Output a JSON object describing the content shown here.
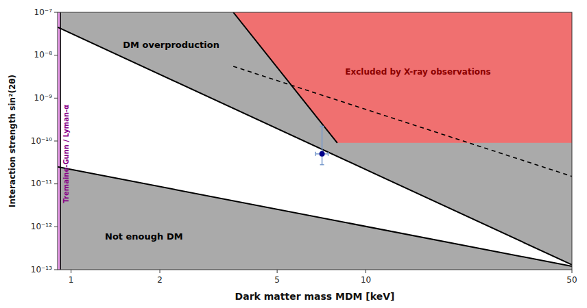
{
  "chart_data": {
    "type": "region",
    "xlabel": "Dark matter mass MDM [keV]",
    "ylabel": "Interaction strength sin²(2θ)",
    "log": true,
    "grid": false,
    "xlim": [
      0.9,
      50
    ],
    "ylim": [
      1e-13,
      1e-07
    ],
    "xticks": [
      1,
      2,
      5,
      10,
      50
    ],
    "yticks": [
      {
        "value": 1e-13,
        "label": "10⁻¹³"
      },
      {
        "value": 1e-12,
        "label": "10⁻¹²"
      },
      {
        "value": 1e-11,
        "label": "10⁻¹¹"
      },
      {
        "value": 1e-10,
        "label": "10⁻¹⁰"
      },
      {
        "value": 1e-09,
        "label": "10⁻⁹"
      },
      {
        "value": 1e-08,
        "label": "10⁻⁸"
      },
      {
        "value": 1e-07,
        "label": "10⁻⁷"
      }
    ],
    "series": [
      {
        "type": "area_above",
        "label": "DM overproduction",
        "color": "#aaaaaa",
        "label_color": "#000000",
        "x": [
          0.9,
          50
        ],
        "values": [
          4.5e-08,
          1.3e-13
        ]
      },
      {
        "type": "area_below",
        "label": "Not enough DM",
        "color": "#aaaaaa",
        "label_color": "#000000",
        "x": [
          0.9,
          50
        ],
        "values": [
          2.5e-11,
          1.2e-13
        ]
      },
      {
        "type": "area_right",
        "label": "Excluded by X-ray observations",
        "color": "#f07070",
        "label_color": "#8b0000",
        "x": [
          3.55,
          8.0
        ],
        "values": [
          1e-07,
          9e-11
        ]
      },
      {
        "type": "line",
        "line_style": "dashed",
        "color": "#000000",
        "x": [
          3.55,
          50
        ],
        "values": [
          5.5e-09,
          1.5e-11
        ]
      },
      {
        "type": "band",
        "label": "Tremaine-Gunn / Lyman-α",
        "color": "#f0a0f0",
        "label_color": "#880088",
        "x": [
          0.92
        ]
      },
      {
        "type": "scatter",
        "marker": "circle",
        "color": "#00008b",
        "error_color": "#7799cc",
        "x": [
          7.1
        ],
        "values": [
          5e-11
        ],
        "y_low": [
          2.8e-11
        ],
        "y_high": [
          2.2e-10
        ],
        "x_error": [
          0.35
        ]
      }
    ]
  }
}
